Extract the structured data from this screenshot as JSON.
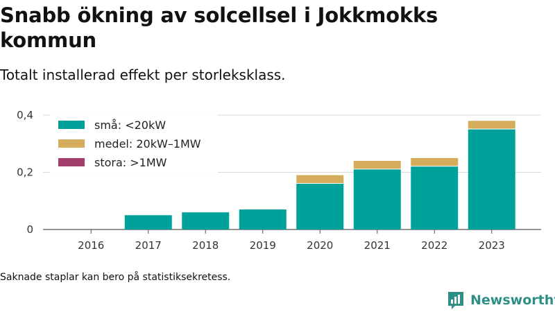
{
  "header": {
    "title": "Snabb ökning av solcellsel i Jokkmokks kommun",
    "subtitle": "Totalt installerad effekt per storleksklass."
  },
  "footer": {
    "note": "Saknade staplar kan bero på statistiksekretess.",
    "brand": "Newsworthy"
  },
  "colors": {
    "small": "#00a19a",
    "medium": "#d6ad5c",
    "large": "#a23f6b",
    "grid": "#d9d9d9",
    "axis": "#555555",
    "brand": "#2f8f86"
  },
  "chart_data": {
    "type": "bar",
    "stacked": true,
    "categories": [
      "2016",
      "2017",
      "2018",
      "2019",
      "2020",
      "2021",
      "2022",
      "2023"
    ],
    "series": [
      {
        "name": "små: <20kW",
        "values": [
          0,
          0.05,
          0.06,
          0.07,
          0.16,
          0.21,
          0.22,
          0.35
        ]
      },
      {
        "name": "medel: 20kW–1MW",
        "values": [
          0,
          0,
          0,
          0,
          0.03,
          0.03,
          0.03,
          0.03
        ]
      },
      {
        "name": "stora: >1MW",
        "values": [
          0,
          0,
          0,
          0,
          0,
          0,
          0,
          0
        ]
      }
    ],
    "ylim": [
      0,
      0.4
    ],
    "yticks": [
      0,
      0.2,
      0.4
    ],
    "ytick_labels": [
      "0",
      "0,2",
      "0,4"
    ],
    "xlabel": "",
    "ylabel": "",
    "grid": true,
    "legend_position": "top-left"
  }
}
